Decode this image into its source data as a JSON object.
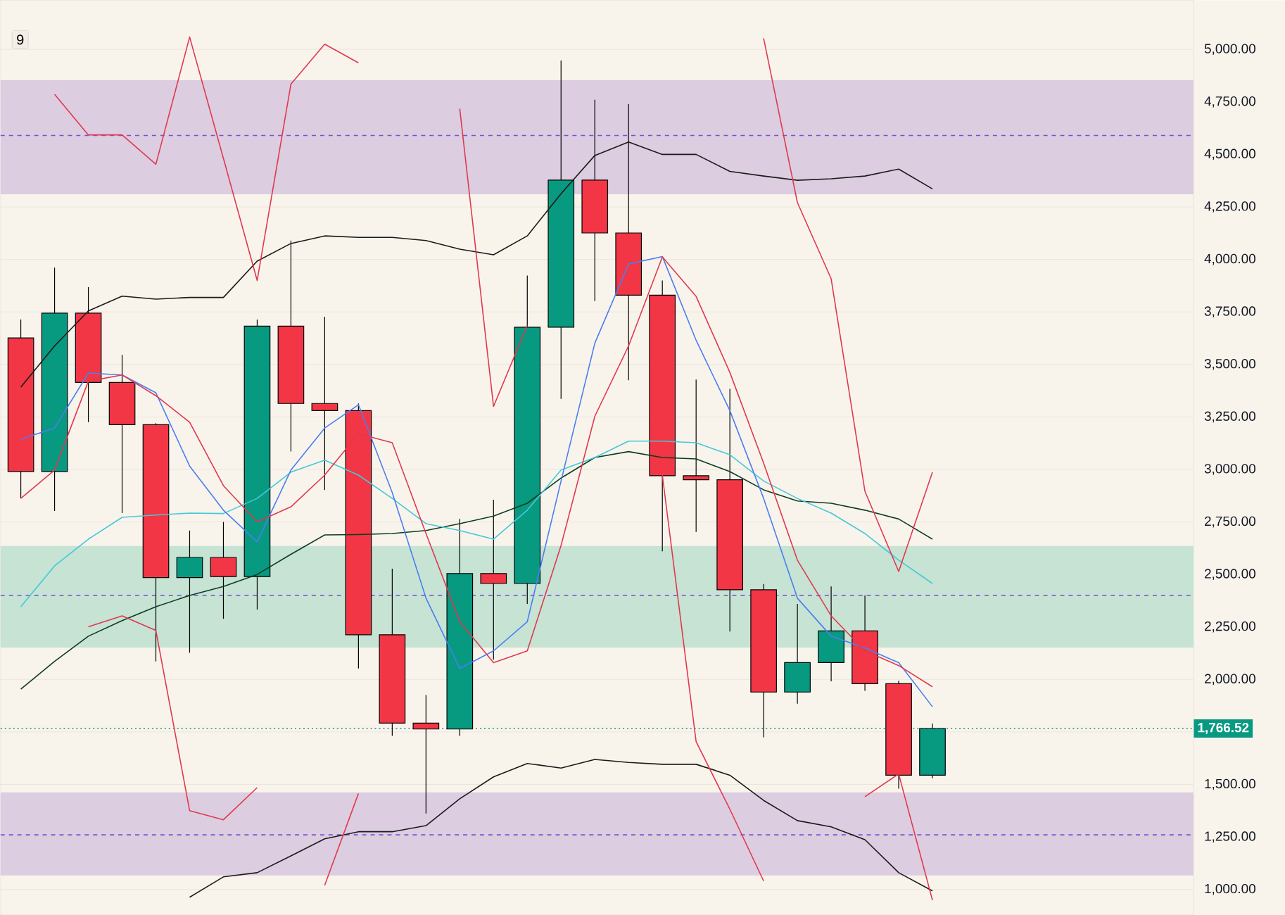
{
  "chart_data": {
    "type": "candlestick",
    "categories": [
      null,
      null,
      null,
      null,
      null,
      null,
      null,
      null,
      null,
      null,
      null,
      null,
      null,
      null,
      null,
      null,
      null,
      null,
      null,
      null,
      null,
      null,
      null,
      null,
      null,
      null,
      null,
      null
    ],
    "ohlc": [
      [
        3626,
        3714,
        2862,
        2990
      ],
      [
        2990,
        3961,
        2802,
        3744
      ],
      [
        3744,
        3868,
        3225,
        3414
      ],
      [
        3414,
        3546,
        2792,
        3213
      ],
      [
        3213,
        3220,
        2086,
        2485
      ],
      [
        2485,
        2709,
        2127,
        2581
      ],
      [
        2581,
        2750,
        2289,
        2490
      ],
      [
        2490,
        3714,
        2333,
        3682
      ],
      [
        3682,
        4090,
        3085,
        3314
      ],
      [
        3314,
        3727,
        2902,
        3280
      ],
      [
        3280,
        3314,
        2052,
        2213
      ],
      [
        2213,
        2527,
        1731,
        1792
      ],
      [
        1792,
        1926,
        1362,
        1764
      ],
      [
        1764,
        2764,
        1731,
        2504
      ],
      [
        2504,
        2856,
        2094,
        2457
      ],
      [
        2457,
        3923,
        2360,
        3677
      ],
      [
        3677,
        4947,
        3336,
        4378
      ],
      [
        4378,
        4760,
        3802,
        4126
      ],
      [
        4126,
        4739,
        3425,
        3830
      ],
      [
        3830,
        3900,
        2610,
        2970
      ],
      [
        2970,
        3428,
        2702,
        2951
      ],
      [
        2951,
        3384,
        2228,
        2427
      ],
      [
        2427,
        2454,
        1725,
        1940
      ],
      [
        1940,
        2360,
        1885,
        2080
      ],
      [
        2080,
        2443,
        1991,
        2231
      ],
      [
        2231,
        2400,
        1946,
        1980
      ],
      [
        1980,
        1994,
        1480,
        1544
      ],
      [
        1544,
        1790,
        1529,
        1766.52
      ]
    ],
    "colors": [
      "#f23645",
      "#089981",
      "#f23645",
      "#f23645",
      "#f23645",
      "#089981",
      "#f23645",
      "#089981",
      "#f23645",
      "#f23645",
      "#f23645",
      "#f23645",
      "#f23645",
      "#089981",
      "#f23645",
      "#089981",
      "#089981",
      "#f23645",
      "#f23645",
      "#f23645",
      "#f23645",
      "#f23645",
      "#f23645",
      "#089981",
      "#089981",
      "#f23645",
      "#f23645",
      "#089981"
    ],
    "series": [
      {
        "type": "line",
        "color": "#1a1a1a",
        "values": [
          3392,
          3588,
          3755,
          3825,
          3811,
          3819,
          3819,
          3992,
          4076,
          4112,
          4105,
          4105,
          4090,
          4049,
          4022,
          4112,
          4313,
          4495,
          4559,
          4500,
          4500,
          4419,
          4397,
          4377,
          4384,
          4397,
          4430,
          4336
        ]
      },
      {
        "type": "line",
        "color": "#1a1a1a",
        "values": [
          null,
          null,
          null,
          null,
          null,
          963,
          1060,
          1080,
          1160,
          1241,
          1275,
          1275,
          1304,
          1432,
          1536,
          1600,
          1578,
          1619,
          1605,
          1596,
          1596,
          1544,
          1424,
          1328,
          1298,
          1237,
          1080,
          993
        ]
      },
      {
        "type": "line",
        "color": "#0b3d20",
        "values": [
          1954,
          2086,
          2206,
          2280,
          2346,
          2400,
          2443,
          2500,
          2596,
          2688,
          2690,
          2695,
          2709,
          2742,
          2778,
          2839,
          2959,
          3057,
          3085,
          3057,
          3050,
          2990,
          2903,
          2850,
          2839,
          2806,
          2764,
          2668
        ]
      },
      {
        "type": "line",
        "color": "#45c8d8",
        "values": [
          2346,
          2541,
          2668,
          2772,
          2783,
          2792,
          2790,
          2862,
          2987,
          3044,
          2973,
          2862,
          2742,
          2709,
          2668,
          2806,
          2997,
          3057,
          3135,
          3135,
          3127,
          3070,
          2945,
          2862,
          2792,
          2695,
          2568,
          2457
        ]
      },
      {
        "type": "line",
        "color": "#4a7ef0",
        "values": [
          3144,
          3197,
          3459,
          3450,
          3365,
          3016,
          2806,
          2655,
          2997,
          3197,
          3308,
          2890,
          2387,
          2052,
          2136,
          2275,
          2945,
          3601,
          3978,
          4014,
          3615,
          3280,
          2862,
          2387,
          2206,
          2150,
          2080,
          1870
        ]
      },
      {
        "type": "line",
        "color": "#e0384e",
        "values": [
          2862,
          2997,
          3420,
          3450,
          3351,
          3225,
          2923,
          2750,
          2822,
          2973,
          3170,
          3127,
          2695,
          2275,
          2080,
          2136,
          2638,
          3253,
          3588,
          4012,
          3824,
          3462,
          3030,
          2568,
          2303,
          2136,
          2066,
          1965
        ]
      },
      {
        "type": "line",
        "color": "#e0384e",
        "values": [
          null,
          4786,
          4593,
          4593,
          4453,
          5059,
          4481,
          3900,
          4835,
          5025,
          4936,
          null,
          null,
          4718,
          3300,
          3686,
          null,
          null,
          null,
          null,
          null,
          null,
          5053,
          4271,
          3908,
          2896,
          2514,
          2987
        ]
      },
      {
        "type": "line",
        "color": "#e0384e",
        "values": [
          null,
          null,
          2251,
          2303,
          2233,
          1375,
          1332,
          1485,
          null,
          1020,
          1457,
          null,
          null,
          null,
          null,
          null,
          null,
          null,
          null,
          2973,
          1704,
          1382,
          1040,
          null,
          null,
          1442,
          1550,
          949
        ]
      }
    ],
    "ylim": [
      879,
      5234
    ],
    "yticks": [
      {
        "value": 1000,
        "label": "1,000.00"
      },
      {
        "value": 1250,
        "label": "1,250.00"
      },
      {
        "value": 1500,
        "label": "1,500.00"
      },
      {
        "value": 1750,
        "label": null
      },
      {
        "value": 2000,
        "label": "2,000.00"
      },
      {
        "value": 2250,
        "label": "2,250.00"
      },
      {
        "value": 2500,
        "label": "2,500.00"
      },
      {
        "value": 2750,
        "label": "2,750.00"
      },
      {
        "value": 3000,
        "label": "3,000.00"
      },
      {
        "value": 3250,
        "label": "3,250.00"
      },
      {
        "value": 3500,
        "label": "3,500.00"
      },
      {
        "value": 3750,
        "label": "3,750.00"
      },
      {
        "value": 4000,
        "label": "4,000.00"
      },
      {
        "value": 4250,
        "label": "4,250.00"
      },
      {
        "value": 4500,
        "label": "4,500.00"
      },
      {
        "value": 4750,
        "label": "4,750.00"
      },
      {
        "value": 5000,
        "label": "5,000.00"
      }
    ],
    "bands": [
      {
        "axis": "y",
        "from": 4310,
        "to": 4853,
        "color": "#dccde0"
      },
      {
        "axis": "y",
        "from": 2152,
        "to": 2635,
        "color": "#c6e3d4"
      },
      {
        "axis": "y",
        "from": 1067,
        "to": 1462,
        "color": "#dccde0"
      }
    ],
    "ref_lines": [
      {
        "axis": "y",
        "value": 4590,
        "color": "#7b4fd6",
        "line_style": "dashed"
      },
      {
        "axis": "y",
        "value": 2400,
        "color": "#7b4fd6",
        "line_style": "dashed"
      },
      {
        "axis": "y",
        "value": 1260,
        "color": "#7b4fd6",
        "line_style": "dashed"
      },
      {
        "axis": "y",
        "value": 1766.52,
        "color": "#089981",
        "line_style": "dotted",
        "label": "1,766.52"
      }
    ],
    "annotations": [
      "9"
    ],
    "grid": "y"
  }
}
